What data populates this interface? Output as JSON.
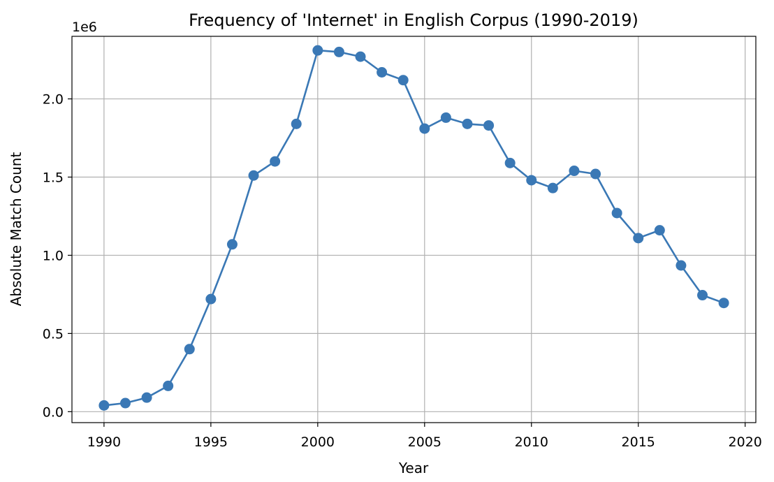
{
  "chart_data": {
    "type": "line",
    "title": "Frequency of 'Internet' in English Corpus (1990-2019)",
    "xlabel": "Year",
    "ylabel": "Absolute Match Count",
    "y_offset_label": "1e6",
    "xlim": [
      1988.5,
      2020.5
    ],
    "ylim": [
      -70000,
      2400000
    ],
    "x_ticks": [
      1990,
      1995,
      2000,
      2005,
      2010,
      2015,
      2020
    ],
    "x_tick_labels": [
      "1990",
      "1995",
      "2000",
      "2005",
      "2010",
      "2015",
      "2020"
    ],
    "y_ticks": [
      0,
      500000,
      1000000,
      1500000,
      2000000
    ],
    "y_tick_labels": [
      "0.0",
      "0.5",
      "1.0",
      "1.5",
      "2.0"
    ],
    "grid": true,
    "color": "#3a78b5",
    "x": [
      1990,
      1991,
      1992,
      1993,
      1994,
      1995,
      1996,
      1997,
      1998,
      1999,
      2000,
      2001,
      2002,
      2003,
      2004,
      2005,
      2006,
      2007,
      2008,
      2009,
      2010,
      2011,
      2012,
      2013,
      2014,
      2015,
      2016,
      2017,
      2018,
      2019
    ],
    "values": [
      40000,
      55000,
      90000,
      165000,
      400000,
      720000,
      1070000,
      1510000,
      1600000,
      1840000,
      2310000,
      2300000,
      2270000,
      2170000,
      2120000,
      1810000,
      1880000,
      1840000,
      1830000,
      1590000,
      1480000,
      1430000,
      1540000,
      1520000,
      1270000,
      1110000,
      1160000,
      935000,
      745000,
      695000
    ]
  }
}
